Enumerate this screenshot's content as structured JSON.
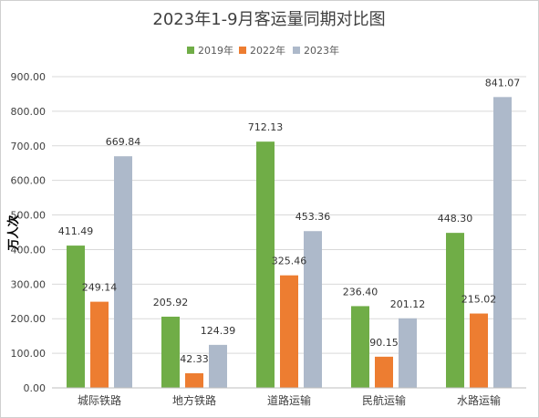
{
  "chart_data": {
    "type": "bar",
    "title": "2023年1-9月客运量同期对比图",
    "ylabel": "万人次",
    "xlabel": "",
    "ylim": [
      0,
      900
    ],
    "yticks": [
      "0.00",
      "100.00",
      "200.00",
      "300.00",
      "400.00",
      "500.00",
      "600.00",
      "700.00",
      "800.00",
      "900.00"
    ],
    "grid": true,
    "legend_position": "top",
    "categories": [
      "城际铁路",
      "地方铁路",
      "道路运输",
      "民航运输",
      "水路运输"
    ],
    "series": [
      {
        "name": "2019年",
        "color": "#70AD47",
        "values": [
          411.49,
          205.92,
          712.13,
          236.4,
          448.3
        ],
        "labels": [
          "411.49",
          "205.92",
          "712.13",
          "236.40",
          "448.30"
        ]
      },
      {
        "name": "2022年",
        "color": "#ED7D31",
        "values": [
          249.14,
          42.33,
          325.46,
          90.15,
          215.02
        ],
        "labels": [
          "249.14",
          "42.33",
          "325.46",
          "90.15",
          "215.02"
        ]
      },
      {
        "name": "2023年",
        "color": "#ADB9CA",
        "values": [
          669.84,
          124.39,
          453.36,
          201.12,
          841.07
        ],
        "labels": [
          "669.84",
          "124.39",
          "453.36",
          "201.12",
          "841.07"
        ]
      }
    ]
  }
}
